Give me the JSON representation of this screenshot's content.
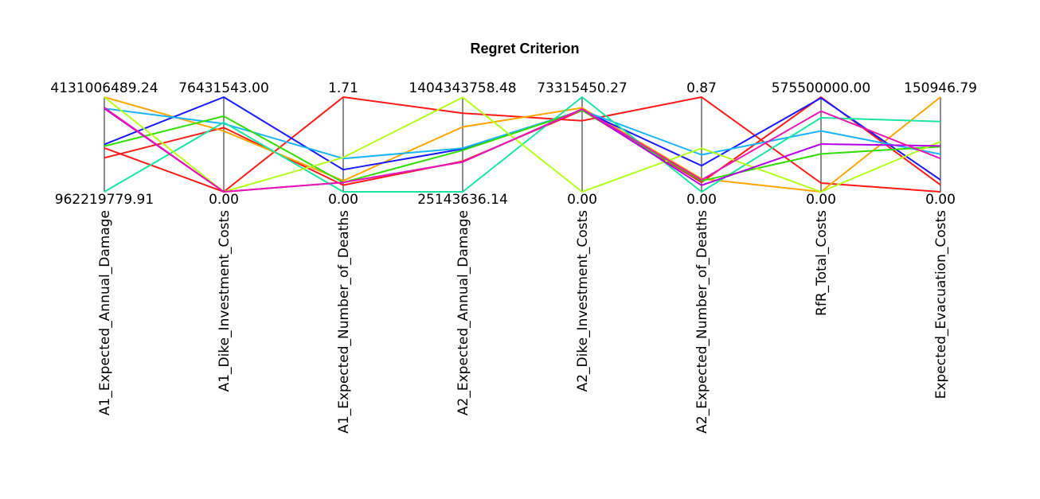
{
  "chart_data": {
    "type": "parallel_coordinates",
    "title": "Regret Criterion",
    "axes": [
      {
        "label": "A1_Expected_Annual_Damage",
        "max_label": "4131006489.24",
        "min_label": "962219779.91",
        "max": 4131006489.24,
        "min": 962219779.91
      },
      {
        "label": "A1_Dike_Investment_Costs",
        "max_label": "76431543.00",
        "min_label": "0.00",
        "max": 76431543.0,
        "min": 0.0
      },
      {
        "label": "A1_Expected_Number_of_Deaths",
        "max_label": "1.71",
        "min_label": "0.00",
        "max": 1.71,
        "min": 0.0
      },
      {
        "label": "A2_Expected_Annual_Damage",
        "max_label": "1404343758.48",
        "min_label": "25143636.14",
        "max": 1404343758.48,
        "min": 25143636.14
      },
      {
        "label": "A2_Dike_Investment_Costs",
        "max_label": "73315450.27",
        "min_label": "0.00",
        "max": 73315450.27,
        "min": 0.0
      },
      {
        "label": "A2_Expected_Number_of_Deaths",
        "max_label": "0.87",
        "min_label": "0.00",
        "max": 0.87,
        "min": 0.0
      },
      {
        "label": "RfR_Total_Costs",
        "max_label": "575500000.00",
        "min_label": "0.00",
        "max": 575500000.0,
        "min": 0.0
      },
      {
        "label": "Expected_Evacuation_Costs",
        "max_label": "150946.79",
        "min_label": "0.00",
        "max": 150946.79,
        "min": 0.0
      }
    ],
    "series": [
      {
        "color": "#ff1a1a",
        "values": [
          2100000000.0,
          51800000.0,
          0.12,
          470000000.0,
          63000000.0,
          0.087,
          575500000.0,
          11000.0
        ]
      },
      {
        "color": "#ff1a1a",
        "values": [
          2430000000.0,
          0,
          1.71,
          1170000000.0,
          55000000.0,
          0.87,
          53000000.0,
          0
        ]
      },
      {
        "color": "#ffa500",
        "values": [
          4130000000.0,
          49000000.0,
          0.2,
          970000000.0,
          65000000.0,
          0.12,
          0,
          151000.0
        ]
      },
      {
        "color": "#1a1aff",
        "values": [
          2550000000.0,
          76400000.0,
          0.4,
          650000000.0,
          63000000.0,
          0.24,
          570000000.0,
          19000.0
        ]
      },
      {
        "color": "#1ab3ff",
        "values": [
          3750000000.0,
          55000000.0,
          0.6,
          660000000.0,
          63000000.0,
          0.34,
          370000000.0,
          60000.0
        ]
      },
      {
        "color": "#1ae6a0",
        "values": [
          962000000.0,
          56000000.0,
          0,
          25100000.0,
          73300000.0,
          0,
          450000000.0,
          112000.0
        ]
      },
      {
        "color": "#33dd00",
        "values": [
          2490000000.0,
          61000000.0,
          0.17,
          630000000.0,
          63000000.0,
          0.1,
          230000000.0,
          72000.0
        ]
      },
      {
        "color": "#b3ff1a",
        "values": [
          4130000000.0,
          0,
          0.62,
          1400000000.0,
          0,
          0.4,
          0,
          80000.0
        ]
      },
      {
        "color": "#b300e6",
        "values": [
          3750000000.0,
          0,
          0.17,
          460000000.0,
          64000000.0,
          0.06,
          290000000.0,
          73000.0
        ]
      },
      {
        "color": "#e61ab3",
        "values": [
          3780000000.0,
          0,
          0.17,
          460000000.0,
          64000000.0,
          0.11,
          490000000.0,
          53000.0
        ]
      }
    ]
  }
}
